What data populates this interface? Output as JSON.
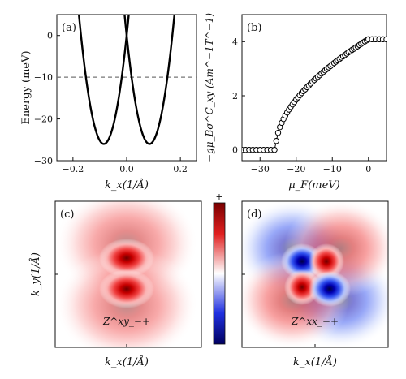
{
  "chart_data": [
    {
      "panel": "a",
      "panel_label": "(a)",
      "type": "line",
      "xlabel": "k_x(1/Å)",
      "ylabel": "Energy (meV)",
      "xlim": [
        -0.26,
        0.26
      ],
      "ylim": [
        -30,
        5
      ],
      "xticks": [
        -0.2,
        0.0,
        0.2
      ],
      "xtick_labels": [
        "−0.2",
        "0.0",
        "0.2"
      ],
      "yticks": [
        0,
        -10,
        -20,
        -30
      ],
      "ytick_labels": [
        "0",
        "−10",
        "−20",
        "−30"
      ],
      "series": [
        {
          "style": "solid black",
          "shape": "parabola",
          "min_x": -0.085,
          "min_y": -26
        },
        {
          "style": "solid black",
          "shape": "parabola",
          "min_x": 0.085,
          "min_y": -26
        }
      ],
      "reference_line": {
        "y": -10,
        "style": "dashed gray"
      }
    },
    {
      "panel": "b",
      "panel_label": "(b)",
      "type": "scatter",
      "xlabel": "μ_F(meV)",
      "ylabel": "−gμ_Bσ^C_xy (Am^−1T^−1)",
      "xlim": [
        -35,
        5
      ],
      "ylim": [
        -0.4,
        5
      ],
      "xticks": [
        -30,
        -20,
        -10,
        0
      ],
      "xtick_labels": [
        "−30",
        "−20",
        "−10",
        "0"
      ],
      "yticks": [
        0,
        2,
        4
      ],
      "ytick_labels": [
        "0",
        "2",
        "4"
      ],
      "marker": "open circle",
      "x": [
        -35,
        -34,
        -33,
        -32,
        -31,
        -30,
        -29,
        -28,
        -27,
        -26,
        -25.5,
        -25.0,
        -24.5,
        -24.0,
        -23.5,
        -23.0,
        -22.5,
        -22.0,
        -21.5,
        -21.0,
        -20.5,
        -20.0,
        -19.5,
        -19.0,
        -18.5,
        -18.0,
        -17.5,
        -17.0,
        -16.5,
        -16.0,
        -15.5,
        -15.0,
        -14.5,
        -14.0,
        -13.5,
        -13.0,
        -12.5,
        -12.0,
        -11.5,
        -11.0,
        -10.5,
        -10.0,
        -9.5,
        -9.0,
        -8.5,
        -8.0,
        -7.5,
        -7.0,
        -6.5,
        -6.0,
        -5.5,
        -5.0,
        -4.5,
        -4.0,
        -3.5,
        -3.0,
        -2.5,
        -2.0,
        -1.5,
        -1.0,
        -0.5,
        0,
        1,
        2,
        3,
        4,
        5
      ],
      "y": [
        0,
        0,
        0,
        0,
        0,
        0,
        0,
        0,
        0,
        0,
        0.33,
        0.63,
        0.84,
        1.0,
        1.14,
        1.27,
        1.38,
        1.49,
        1.59,
        1.68,
        1.77,
        1.86,
        1.94,
        2.02,
        2.1,
        2.17,
        2.24,
        2.32,
        2.38,
        2.45,
        2.52,
        2.58,
        2.64,
        2.7,
        2.76,
        2.82,
        2.88,
        2.94,
        2.99,
        3.05,
        3.1,
        3.16,
        3.21,
        3.26,
        3.31,
        3.36,
        3.41,
        3.46,
        3.51,
        3.56,
        3.61,
        3.65,
        3.7,
        3.74,
        3.79,
        3.83,
        3.88,
        3.92,
        3.97,
        4.01,
        4.05,
        4.09,
        4.09,
        4.09,
        4.09,
        4.09,
        4.09
      ]
    },
    {
      "panel": "c",
      "panel_label": "(c)",
      "type": "heatmap",
      "xlabel": "k_x(1/Å)",
      "ylabel": "k_y(1/Å)",
      "annotation": "Z^xy_−+",
      "pattern": "two red lobes above and below center",
      "colormap": "seismic"
    },
    {
      "panel": "colorbar",
      "type": "heatmap",
      "top_label": "+",
      "bottom_label": "−",
      "colors": [
        "#7a0000",
        "#e02020",
        "#ffffff",
        "#2030e0",
        "#000060"
      ]
    },
    {
      "panel": "d",
      "panel_label": "(d)",
      "type": "heatmap",
      "xlabel": "k_x(1/Å)",
      "annotation": "Z^xx_−+",
      "pattern": "quadrupole: red upper-right and lower-left, blue upper-left and lower-right",
      "colormap": "seismic"
    }
  ]
}
